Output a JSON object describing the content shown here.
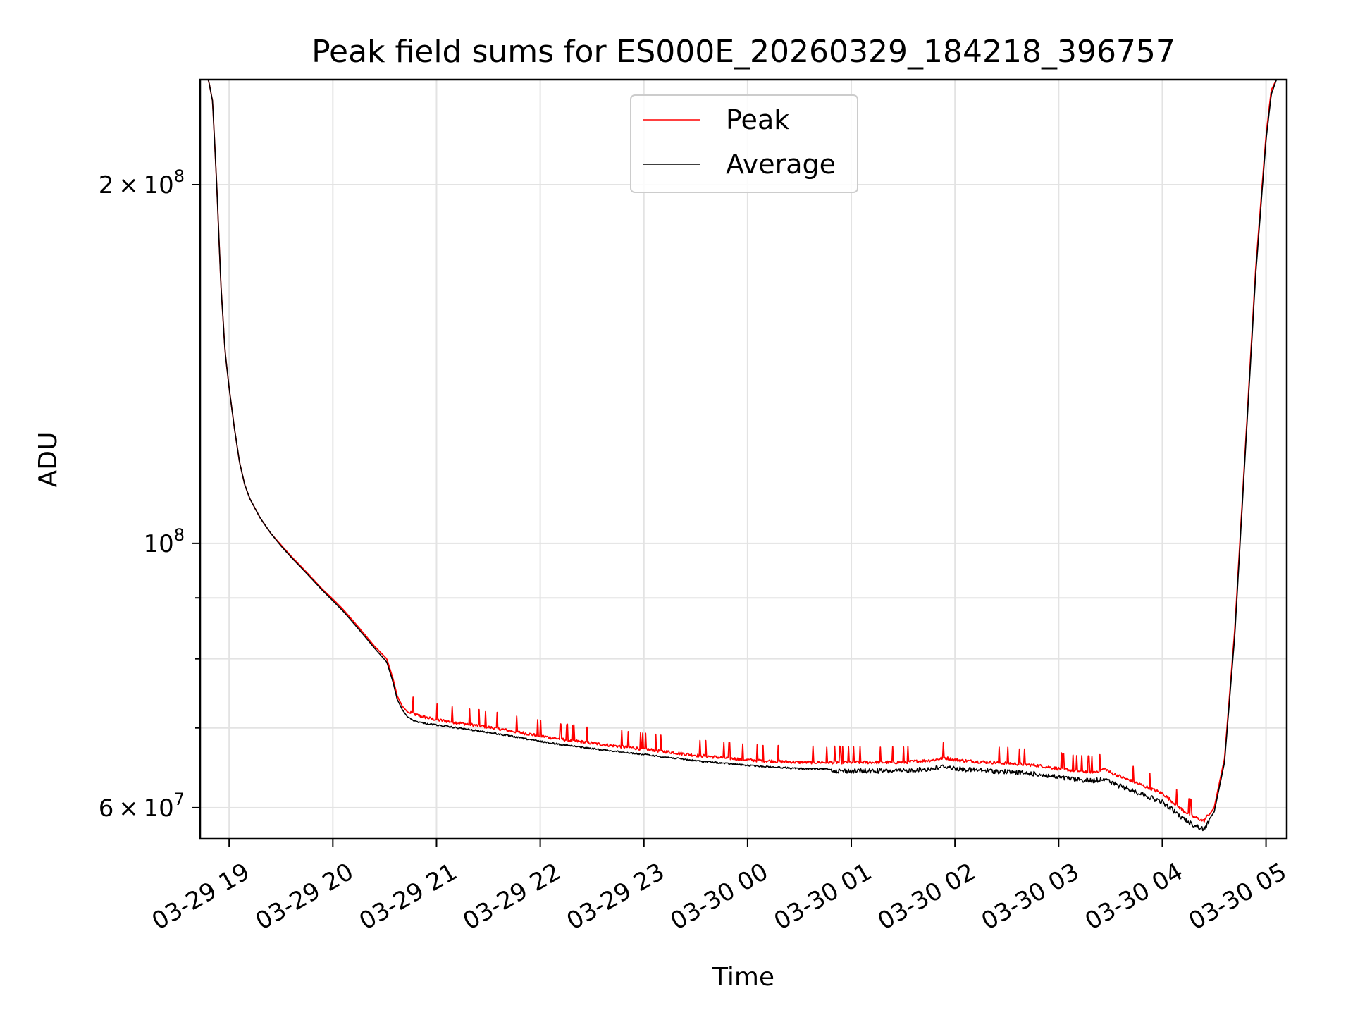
{
  "chart_data": {
    "type": "line",
    "title": "Peak field sums for ES000E_20260329_184218_396757",
    "xlabel": "Time",
    "ylabel": "ADU",
    "yscale": "log",
    "xlim": [
      18.72,
      29.2
    ],
    "ylim": [
      56500000,
      245000000
    ],
    "x_unit": "hours since 2026-03-29 00:00",
    "x_ticks": [
      {
        "value": 19,
        "label": "03-29 19"
      },
      {
        "value": 20,
        "label": "03-29 20"
      },
      {
        "value": 21,
        "label": "03-29 21"
      },
      {
        "value": 22,
        "label": "03-29 22"
      },
      {
        "value": 23,
        "label": "03-29 23"
      },
      {
        "value": 24,
        "label": "03-30 00"
      },
      {
        "value": 25,
        "label": "03-30 01"
      },
      {
        "value": 26,
        "label": "03-30 02"
      },
      {
        "value": 27,
        "label": "03-30 03"
      },
      {
        "value": 28,
        "label": "03-30 04"
      },
      {
        "value": 29,
        "label": "03-30 05"
      }
    ],
    "y_ticks_major": [
      {
        "value": 60000000,
        "mantissa": "6",
        "exponent": "7"
      },
      {
        "value": 100000000,
        "mantissa": "",
        "exponent": "8"
      },
      {
        "value": 200000000,
        "mantissa": "2",
        "exponent": "8"
      }
    ],
    "y_ticks_minor": [
      70000000,
      80000000,
      90000000
    ],
    "legend": {
      "position": "upper-center",
      "entries": [
        "Peak",
        "Average"
      ]
    },
    "series": [
      {
        "name": "Peak",
        "color": "#ff0000",
        "x": [
          18.72,
          18.8,
          18.84,
          18.88,
          18.92,
          18.96,
          19.0,
          19.05,
          19.1,
          19.15,
          19.2,
          19.3,
          19.4,
          19.5,
          19.6,
          19.7,
          19.8,
          19.9,
          20.0,
          20.1,
          20.2,
          20.3,
          20.4,
          20.52,
          20.58,
          20.62,
          20.67,
          20.72,
          20.8,
          20.9,
          21.0,
          21.2,
          21.5,
          21.8,
          22.0,
          22.3,
          22.6,
          23.0,
          23.5,
          24.0,
          24.5,
          25.0,
          25.5,
          25.8,
          25.9,
          26.0,
          26.2,
          26.5,
          26.8,
          27.0,
          27.2,
          27.35,
          27.45,
          27.5,
          27.6,
          27.8,
          28.0,
          28.1,
          28.2,
          28.3,
          28.4,
          28.5,
          28.6,
          28.7,
          28.8,
          28.9,
          29.0,
          29.05,
          29.1,
          29.2
        ],
        "y": [
          245000000,
          245000000,
          235000000,
          200000000,
          165000000,
          145000000,
          135000000,
          125000000,
          117000000,
          112000000,
          109000000,
          105000000,
          102000000,
          99700000,
          97500000,
          95500000,
          93500000,
          91500000,
          89800000,
          88000000,
          86000000,
          84000000,
          82000000,
          80000000,
          77000000,
          74500000,
          73000000,
          72200000,
          71600000,
          71200000,
          70900000,
          70500000,
          69900000,
          69200000,
          68700000,
          68100000,
          67600000,
          67000000,
          66200000,
          65600000,
          65300000,
          65300000,
          65300000,
          65600000,
          65900000,
          65600000,
          65400000,
          65200000,
          64900000,
          64500000,
          64200000,
          64100000,
          64500000,
          64000000,
          63500000,
          62500000,
          61500000,
          60500000,
          59500000,
          58800000,
          58300000,
          60000000,
          66000000,
          85000000,
          120000000,
          170000000,
          220000000,
          240000000,
          245000000,
          245000000
        ]
      },
      {
        "name": "Average",
        "color": "#000000",
        "x": [
          18.72,
          18.8,
          18.84,
          18.88,
          18.92,
          18.96,
          19.0,
          19.05,
          19.1,
          19.15,
          19.2,
          19.3,
          19.4,
          19.5,
          19.6,
          19.7,
          19.8,
          19.9,
          20.0,
          20.1,
          20.2,
          20.3,
          20.4,
          20.52,
          20.58,
          20.62,
          20.67,
          20.72,
          20.8,
          20.9,
          21.0,
          21.2,
          21.5,
          21.8,
          22.0,
          22.3,
          22.6,
          23.0,
          23.5,
          24.0,
          24.5,
          25.0,
          25.5,
          25.8,
          25.9,
          26.0,
          26.2,
          26.5,
          26.8,
          27.0,
          27.2,
          27.35,
          27.45,
          27.5,
          27.6,
          27.8,
          28.0,
          28.1,
          28.2,
          28.3,
          28.4,
          28.5,
          28.6,
          28.7,
          28.8,
          28.9,
          29.0,
          29.05,
          29.1,
          29.2
        ],
        "y": [
          245000000,
          245000000,
          235000000,
          200000000,
          165000000,
          145000000,
          135000000,
          125000000,
          117000000,
          112000000,
          109000000,
          105000000,
          102000000,
          99500000,
          97300000,
          95300000,
          93300000,
          91300000,
          89500000,
          87700000,
          85700000,
          83700000,
          81700000,
          79500000,
          76500000,
          74000000,
          72500000,
          71500000,
          71000000,
          70700000,
          70500000,
          70100000,
          69500000,
          68800000,
          68300000,
          67700000,
          67200000,
          66600000,
          65800000,
          65200000,
          64800000,
          64700000,
          64700000,
          65000000,
          65300000,
          65000000,
          64800000,
          64600000,
          64300000,
          63900000,
          63600000,
          63500000,
          63800000,
          63300000,
          62800000,
          61900000,
          60900000,
          60000000,
          59000000,
          58300000,
          57800000,
          59500000,
          65500000,
          84000000,
          119000000,
          168000000,
          218000000,
          238000000,
          245000000,
          245000000
        ]
      }
    ]
  }
}
